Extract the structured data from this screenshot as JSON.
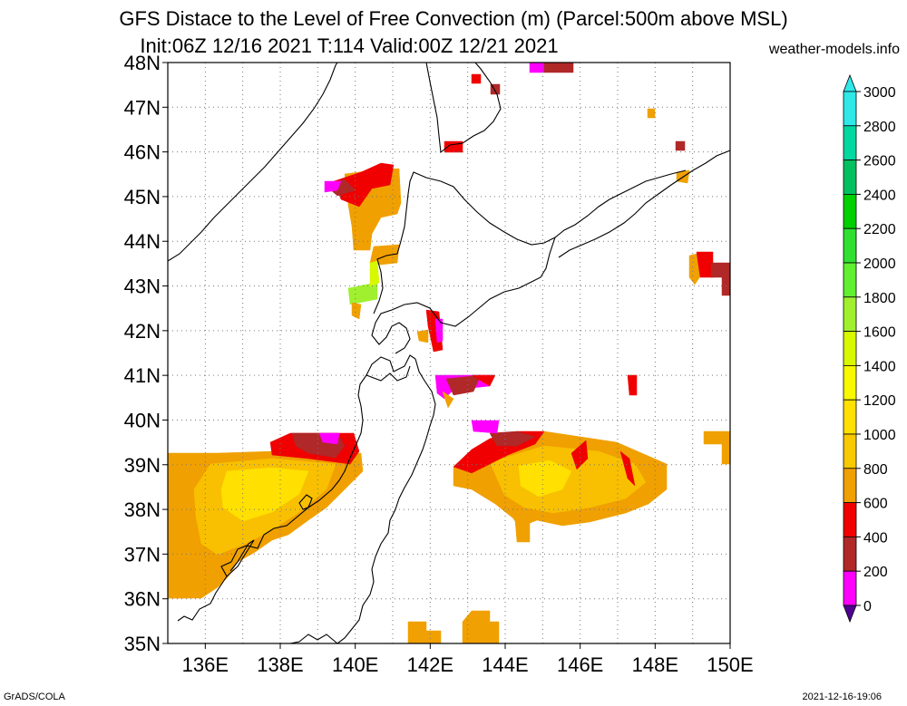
{
  "title_line1": "GFS Distace to the Level of Free Convection (m) (Parcel:500m above MSL)",
  "title_line2": "Init:06Z 12/16 2021 T:114 Valid:00Z 12/21 2021",
  "site": "weather-models.info",
  "footer_left": "GrADS/COLA",
  "footer_right": "2021-12-16-19:06",
  "map": {
    "lat_labels": [
      "48N",
      "47N",
      "46N",
      "45N",
      "44N",
      "43N",
      "42N",
      "41N",
      "40N",
      "39N",
      "38N",
      "37N",
      "36N",
      "35N"
    ],
    "lon_labels": [
      "136E",
      "138E",
      "140E",
      "142E",
      "144E",
      "146E",
      "148E",
      "150E"
    ],
    "lat_range": [
      35,
      48
    ],
    "lon_range": [
      135,
      150
    ],
    "grid": "dotted"
  },
  "colorbar": {
    "labels": [
      "3000",
      "2800",
      "2600",
      "2400",
      "2200",
      "2000",
      "1800",
      "1600",
      "1400",
      "1200",
      "1000",
      "800",
      "600",
      "400",
      "200",
      "0"
    ],
    "colors": [
      "#30e8e8",
      "#00d8a0",
      "#00c060",
      "#00d000",
      "#30e030",
      "#60f030",
      "#a0f030",
      "#d8f800",
      "#f8f800",
      "#ffe000",
      "#f8c800",
      "#f0a000",
      "#f00000",
      "#b02828",
      "#ff00ff",
      "#500090"
    ]
  },
  "field_colors": {
    "v200": "#ff00ff",
    "v400": "#b02828",
    "v600": "#f00000",
    "v800": "#f0a000",
    "v1000": "#f8c000",
    "v1200": "#ffe000",
    "v1800": "#a0f030",
    "v1600": "#d8f800"
  }
}
